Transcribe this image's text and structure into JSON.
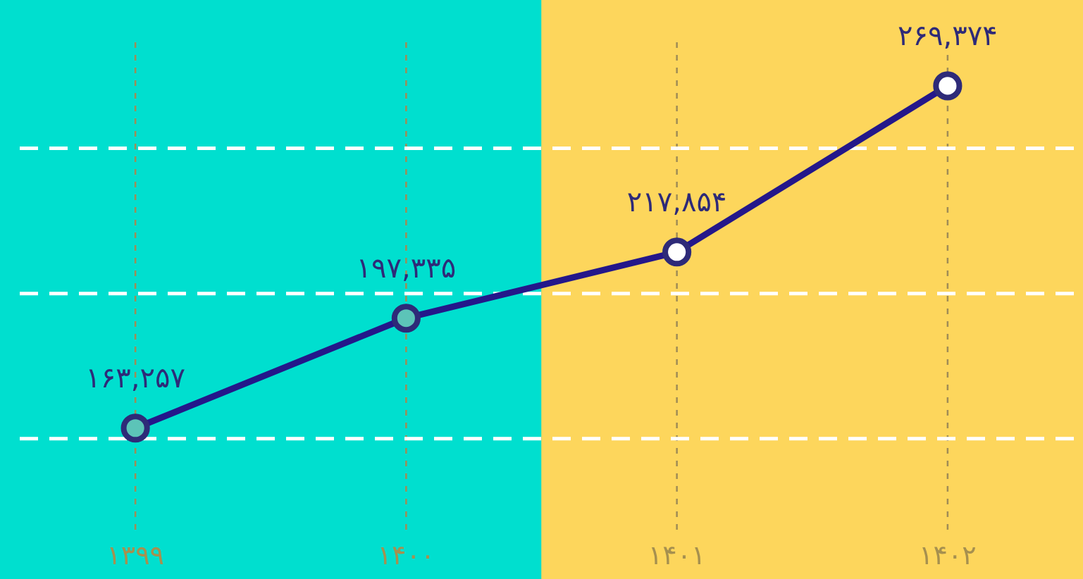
{
  "chart_data": {
    "type": "line",
    "categories": [
      "۱۳۹۹",
      "۱۴۰۰",
      "۱۴۰۱",
      "۱۴۰۲"
    ],
    "series": [
      {
        "color": "#24178a",
        "values": [
          163257,
          197335,
          217854,
          269374
        ],
        "colors": [
          "#5cc4b8",
          "#5cc4b8",
          "#ffffff",
          "#ffffff"
        ],
        "value_labels": [
          "۱۶۳,۲۵۷",
          "۱۹۷,۳۳۵",
          "۲۱۷,۸۵۴",
          "۲۶۹,۳۷۴"
        ]
      }
    ],
    "marker": "circle",
    "grid": true,
    "tick_labels": "x",
    "ylim": [
      130000,
      296000
    ],
    "yticks": [
      {
        "value": 160000,
        "label": null
      },
      {
        "value": 205000,
        "label": null
      },
      {
        "value": 250000,
        "label": null
      }
    ],
    "bands": [
      {
        "axis": "x",
        "from": "۱۳۹۹",
        "to": "۱۴۰۰",
        "color": "#00dfcf"
      },
      {
        "axis": "x",
        "from": "۱۴۰۱",
        "to": "۱۴۰۲",
        "color": "#fdd65c"
      }
    ]
  }
}
